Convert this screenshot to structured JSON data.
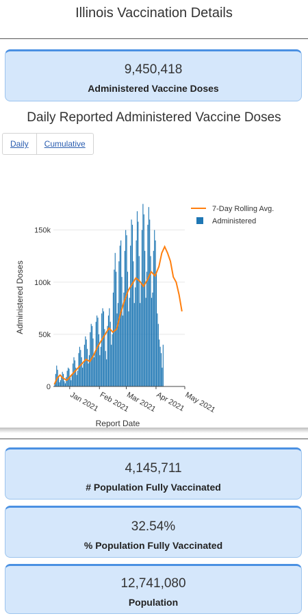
{
  "page": {
    "title": "Illinois Vaccination Details"
  },
  "cards": {
    "administered": {
      "value": "9,450,418",
      "label": "Administered Vaccine Doses"
    },
    "fully_vaccinated": {
      "value": "4,145,711",
      "label": "# Population Fully Vaccinated"
    },
    "pct_fully_vaccinated": {
      "value": "32.54%",
      "label": "% Population Fully Vaccinated"
    },
    "population": {
      "value": "12,741,080",
      "label": "Population"
    }
  },
  "chart": {
    "title": "Daily Reported Administered Vaccine Doses",
    "tabs": [
      {
        "label": "Daily"
      },
      {
        "label": "Cumulative"
      }
    ]
  },
  "chart_data": {
    "type": "bar",
    "xlabel": "Report Date",
    "ylabel": "Administered Doses",
    "x_range": [
      "2020-12-15",
      "2021-05-01"
    ],
    "x_ticks": [
      {
        "date": "2021-01-01",
        "label": "Jan 2021"
      },
      {
        "date": "2021-02-01",
        "label": "Feb 2021"
      },
      {
        "date": "2021-03-01",
        "label": "Mar 2021"
      },
      {
        "date": "2021-04-01",
        "label": "Apr 2021"
      },
      {
        "date": "2021-05-01",
        "label": "May 2021"
      }
    ],
    "ylim": [
      0,
      180000
    ],
    "y_ticks": [
      {
        "value": 0,
        "label": "0"
      },
      {
        "value": 50000,
        "label": "50k"
      },
      {
        "value": 100000,
        "label": "100k"
      },
      {
        "value": 150000,
        "label": "150k"
      }
    ],
    "grid": true,
    "legend": "top-right",
    "colors": {
      "bar": "#1f77b4",
      "line": "#ff7f0e"
    },
    "series": [
      {
        "name": "Administered",
        "kind": "bar",
        "start_date": "2020-12-16",
        "values": [
          3000,
          12000,
          20000,
          16000,
          9000,
          4000,
          6000,
          10000,
          14000,
          12000,
          5000,
          3000,
          9000,
          15000,
          18000,
          17000,
          10000,
          6000,
          12000,
          22000,
          28000,
          25000,
          18000,
          11000,
          15000,
          32000,
          38000,
          35000,
          28000,
          18000,
          22000,
          40000,
          48000,
          45000,
          36000,
          22000,
          30000,
          52000,
          60000,
          58000,
          46000,
          28000,
          34000,
          62000,
          68000,
          66000,
          50000,
          30000,
          38000,
          70000,
          75000,
          72000,
          55000,
          34000,
          26000,
          58000,
          68000,
          75000,
          62000,
          40000,
          50000,
          90000,
          112000,
          128000,
          110000,
          70000,
          80000,
          120000,
          135000,
          140000,
          105000,
          68000,
          90000,
          130000,
          150000,
          145000,
          110000,
          72000,
          85000,
          135000,
          160000,
          155000,
          120000,
          80000,
          95000,
          140000,
          168000,
          158000,
          125000,
          80000,
          100000,
          150000,
          175000,
          165000,
          130000,
          85000,
          110000,
          155000,
          172000,
          160000,
          125000,
          85000,
          90000,
          130000,
          150000,
          140000,
          110000,
          70000,
          60000,
          45000,
          38000,
          32000,
          18000,
          40000
        ]
      },
      {
        "name": "7-Day Rolling Avg.",
        "kind": "line",
        "points": [
          [
            "2020-12-16",
            2000
          ],
          [
            "2020-12-19",
            8000
          ],
          [
            "2020-12-22",
            11000
          ],
          [
            "2020-12-25",
            8000
          ],
          [
            "2020-12-29",
            6000
          ],
          [
            "2021-01-02",
            10000
          ],
          [
            "2021-01-06",
            14000
          ],
          [
            "2021-01-10",
            18000
          ],
          [
            "2021-01-14",
            22000
          ],
          [
            "2021-01-18",
            26000
          ],
          [
            "2021-01-22",
            24000
          ],
          [
            "2021-01-26",
            30000
          ],
          [
            "2021-01-30",
            38000
          ],
          [
            "2021-02-03",
            44000
          ],
          [
            "2021-02-07",
            50000
          ],
          [
            "2021-02-11",
            56000
          ],
          [
            "2021-02-15",
            52000
          ],
          [
            "2021-02-19",
            55000
          ],
          [
            "2021-02-23",
            70000
          ],
          [
            "2021-02-27",
            82000
          ],
          [
            "2021-03-03",
            92000
          ],
          [
            "2021-03-07",
            98000
          ],
          [
            "2021-03-11",
            104000
          ],
          [
            "2021-03-15",
            101000
          ],
          [
            "2021-03-19",
            96000
          ],
          [
            "2021-03-23",
            102000
          ],
          [
            "2021-03-27",
            110000
          ],
          [
            "2021-03-31",
            106000
          ],
          [
            "2021-04-04",
            115000
          ],
          [
            "2021-04-07",
            128000
          ],
          [
            "2021-04-10",
            134000
          ],
          [
            "2021-04-13",
            128000
          ],
          [
            "2021-04-16",
            120000
          ],
          [
            "2021-04-19",
            105000
          ],
          [
            "2021-04-22",
            100000
          ],
          [
            "2021-04-25",
            88000
          ],
          [
            "2021-04-28",
            72000
          ]
        ]
      }
    ]
  }
}
